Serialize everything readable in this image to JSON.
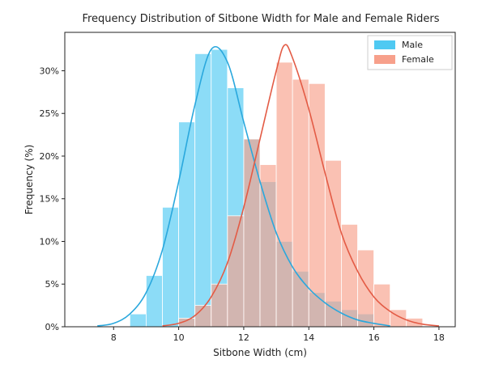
{
  "chart_data": {
    "type": "bar",
    "title": "Frequency Distribution of Sitbone Width for Male and Female Riders",
    "xlabel": "Sitbone Width (cm)",
    "ylabel": "Frequency (%)",
    "xlim": [
      6.5,
      18.5
    ],
    "ylim": [
      0,
      0.345
    ],
    "x_ticks": [
      8,
      10,
      12,
      14,
      16,
      18
    ],
    "y_ticks": [
      0,
      0.05,
      0.1,
      0.15,
      0.2,
      0.25,
      0.3
    ],
    "y_tick_labels": [
      "0%",
      "5%",
      "10%",
      "15%",
      "20%",
      "25%",
      "30%"
    ],
    "bin_width": 0.5,
    "grid": false,
    "legend_position": "top-right",
    "series": [
      {
        "name": "Male",
        "color": "#4fc9f2",
        "line_color": "#2aa8dd",
        "bins": [
          {
            "x": 8.5,
            "y": 0.015
          },
          {
            "x": 9.0,
            "y": 0.06
          },
          {
            "x": 9.5,
            "y": 0.14
          },
          {
            "x": 10.0,
            "y": 0.24
          },
          {
            "x": 10.5,
            "y": 0.32
          },
          {
            "x": 11.0,
            "y": 0.325
          },
          {
            "x": 11.5,
            "y": 0.28
          },
          {
            "x": 12.0,
            "y": 0.22
          },
          {
            "x": 12.5,
            "y": 0.17
          },
          {
            "x": 13.0,
            "y": 0.1
          },
          {
            "x": 13.5,
            "y": 0.065
          },
          {
            "x": 14.0,
            "y": 0.04
          },
          {
            "x": 14.5,
            "y": 0.03
          },
          {
            "x": 15.0,
            "y": 0.02
          },
          {
            "x": 15.5,
            "y": 0.015
          }
        ],
        "kde": [
          [
            7.5,
            0.001
          ],
          [
            8.0,
            0.004
          ],
          [
            8.5,
            0.015
          ],
          [
            9.0,
            0.04
          ],
          [
            9.5,
            0.09
          ],
          [
            10.0,
            0.17
          ],
          [
            10.5,
            0.26
          ],
          [
            11.0,
            0.325
          ],
          [
            11.5,
            0.31
          ],
          [
            12.0,
            0.24
          ],
          [
            12.5,
            0.17
          ],
          [
            13.0,
            0.11
          ],
          [
            13.5,
            0.07
          ],
          [
            14.0,
            0.045
          ],
          [
            14.5,
            0.028
          ],
          [
            15.0,
            0.016
          ],
          [
            15.5,
            0.008
          ],
          [
            16.0,
            0.004
          ],
          [
            16.5,
            0.001
          ]
        ]
      },
      {
        "name": "Female",
        "color": "#f7a08b",
        "line_color": "#e35b45",
        "bins": [
          {
            "x": 10.0,
            "y": 0.01
          },
          {
            "x": 10.5,
            "y": 0.025
          },
          {
            "x": 11.0,
            "y": 0.05
          },
          {
            "x": 11.5,
            "y": 0.13
          },
          {
            "x": 12.0,
            "y": 0.22
          },
          {
            "x": 12.5,
            "y": 0.19
          },
          {
            "x": 13.0,
            "y": 0.31
          },
          {
            "x": 13.5,
            "y": 0.29
          },
          {
            "x": 14.0,
            "y": 0.285
          },
          {
            "x": 14.5,
            "y": 0.195
          },
          {
            "x": 15.0,
            "y": 0.12
          },
          {
            "x": 15.5,
            "y": 0.09
          },
          {
            "x": 16.0,
            "y": 0.05
          },
          {
            "x": 16.5,
            "y": 0.02
          },
          {
            "x": 17.0,
            "y": 0.01
          }
        ],
        "kde": [
          [
            9.5,
            0.001
          ],
          [
            10.0,
            0.004
          ],
          [
            10.5,
            0.013
          ],
          [
            11.0,
            0.035
          ],
          [
            11.5,
            0.075
          ],
          [
            12.0,
            0.14
          ],
          [
            12.5,
            0.22
          ],
          [
            13.0,
            0.3
          ],
          [
            13.25,
            0.33
          ],
          [
            13.5,
            0.315
          ],
          [
            14.0,
            0.255
          ],
          [
            14.5,
            0.18
          ],
          [
            15.0,
            0.11
          ],
          [
            15.5,
            0.065
          ],
          [
            16.0,
            0.035
          ],
          [
            16.5,
            0.018
          ],
          [
            17.0,
            0.008
          ],
          [
            17.5,
            0.003
          ],
          [
            18.0,
            0.001
          ]
        ]
      }
    ]
  }
}
